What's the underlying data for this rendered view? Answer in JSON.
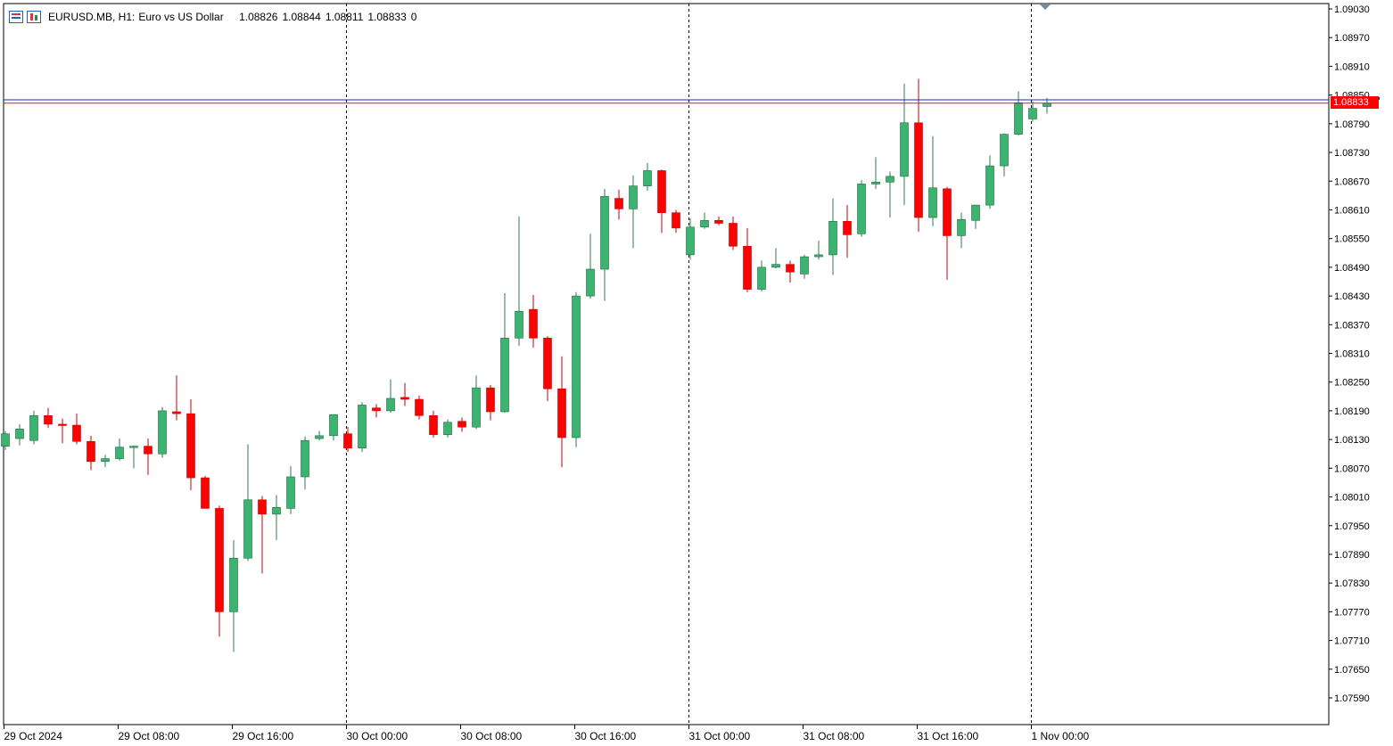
{
  "header": {
    "symbol": "EURUSD.MB, H1:",
    "description": "Euro vs US Dollar",
    "open": "1.08826",
    "high": "1.08844",
    "low": "1.08811",
    "close": "1.08833",
    "volume": "0",
    "icons": [
      "chart-menu-icon",
      "candlestick-icon"
    ]
  },
  "current_price_label": "1.08833",
  "colors": {
    "bull": "#3cb371",
    "bear": "#ff0000",
    "bid_line": "#2222cc",
    "ask_line": "#cc2222",
    "grid": "#000000"
  },
  "chart_data": {
    "type": "candlestick",
    "timeframe": "H1",
    "y_ticks": [
      "1.09030",
      "1.08970",
      "1.08910",
      "1.08850",
      "1.08790",
      "1.08730",
      "1.08670",
      "1.08610",
      "1.08550",
      "1.08490",
      "1.08430",
      "1.08370",
      "1.08310",
      "1.08250",
      "1.08190",
      "1.08130",
      "1.08070",
      "1.08010",
      "1.07950",
      "1.07890",
      "1.07830",
      "1.07770",
      "1.07710",
      "1.07650",
      "1.07590"
    ],
    "x_ticks": [
      "29 Oct 2024",
      "29 Oct 08:00",
      "29 Oct 16:00",
      "30 Oct 00:00",
      "30 Oct 08:00",
      "30 Oct 16:00",
      "31 Oct 00:00",
      "31 Oct 08:00",
      "31 Oct 16:00",
      "1 Nov 00:00"
    ],
    "ylim": [
      1.0754,
      1.0904
    ],
    "bid": 1.08833,
    "ask": 1.0884,
    "candles": [
      [
        1.08116,
        1.08148,
        1.08108,
        1.08142
      ],
      [
        1.08132,
        1.08162,
        1.08118,
        1.08152
      ],
      [
        1.08128,
        1.0819,
        1.0812,
        1.0818
      ],
      [
        1.0818,
        1.08196,
        1.08154,
        1.08162
      ],
      [
        1.08162,
        1.08174,
        1.08122,
        1.0816
      ],
      [
        1.0816,
        1.08184,
        1.0812,
        1.08126
      ],
      [
        1.08126,
        1.08138,
        1.08066,
        1.08084
      ],
      [
        1.08084,
        1.08098,
        1.08072,
        1.0809
      ],
      [
        1.0809,
        1.08132,
        1.08086,
        1.08114
      ],
      [
        1.08114,
        1.08118,
        1.0807,
        1.08116
      ],
      [
        1.08116,
        1.08132,
        1.08056,
        1.081
      ],
      [
        1.081,
        1.08198,
        1.08092,
        1.0819
      ],
      [
        1.08188,
        1.08264,
        1.0817,
        1.08184
      ],
      [
        1.08184,
        1.08214,
        1.08024,
        1.0805
      ],
      [
        1.0805,
        1.08054,
        1.0799,
        1.07986
      ],
      [
        1.07986,
        1.07992,
        1.07718,
        1.0777
      ],
      [
        1.0777,
        1.0792,
        1.07686,
        1.07882
      ],
      [
        1.07882,
        1.0812,
        1.07876,
        1.08004
      ],
      [
        1.08004,
        1.08012,
        1.0785,
        1.07974
      ],
      [
        1.07974,
        1.08014,
        1.0792,
        1.07988
      ],
      [
        1.07986,
        1.08074,
        1.07974,
        1.08052
      ],
      [
        1.08052,
        1.08136,
        1.08026,
        1.08128
      ],
      [
        1.08132,
        1.08148,
        1.08128,
        1.08138
      ],
      [
        1.08138,
        1.08182,
        1.08128,
        1.08182
      ],
      [
        1.08142,
        1.08156,
        1.08104,
        1.08112
      ],
      [
        1.08112,
        1.08208,
        1.08104,
        1.08202
      ],
      [
        1.08196,
        1.08204,
        1.08176,
        1.0819
      ],
      [
        1.0819,
        1.08256,
        1.08186,
        1.08216
      ],
      [
        1.08218,
        1.08248,
        1.082,
        1.08214
      ],
      [
        1.08214,
        1.08222,
        1.08172,
        1.0818
      ],
      [
        1.0818,
        1.0819,
        1.08134,
        1.0814
      ],
      [
        1.0814,
        1.08172,
        1.08134,
        1.08166
      ],
      [
        1.08168,
        1.08176,
        1.08146,
        1.08156
      ],
      [
        1.08156,
        1.08264,
        1.08152,
        1.08238
      ],
      [
        1.08238,
        1.08244,
        1.0817,
        1.08188
      ],
      [
        1.08188,
        1.08436,
        1.08186,
        1.08342
      ],
      [
        1.08342,
        1.08596,
        1.08326,
        1.08398
      ],
      [
        1.08402,
        1.08432,
        1.08322,
        1.08342
      ],
      [
        1.08342,
        1.08346,
        1.0821,
        1.08236
      ],
      [
        1.08236,
        1.08304,
        1.08072,
        1.08134
      ],
      [
        1.08134,
        1.08438,
        1.08114,
        1.0843
      ],
      [
        1.0843,
        1.0856,
        1.08424,
        1.08486
      ],
      [
        1.08486,
        1.08654,
        1.0842,
        1.08638
      ],
      [
        1.08634,
        1.08652,
        1.0859,
        1.08612
      ],
      [
        1.08612,
        1.08682,
        1.0853,
        1.0866
      ],
      [
        1.0866,
        1.08708,
        1.0865,
        1.08692
      ],
      [
        1.08692,
        1.08694,
        1.08562,
        1.08604
      ],
      [
        1.08604,
        1.0861,
        1.08562,
        1.08572
      ],
      [
        1.08516,
        1.08592,
        1.08506,
        1.08574
      ],
      [
        1.08574,
        1.08604,
        1.0857,
        1.08588
      ],
      [
        1.08588,
        1.08596,
        1.08578,
        1.08582
      ],
      [
        1.08582,
        1.08596,
        1.08526,
        1.08534
      ],
      [
        1.08534,
        1.08572,
        1.08438,
        1.08444
      ],
      [
        1.08444,
        1.08504,
        1.0844,
        1.0849
      ],
      [
        1.0849,
        1.0853,
        1.08488,
        1.08496
      ],
      [
        1.08496,
        1.08504,
        1.08458,
        1.0848
      ],
      [
        1.08476,
        1.08516,
        1.08466,
        1.08512
      ],
      [
        1.08512,
        1.08546,
        1.08506,
        1.08516
      ],
      [
        1.08516,
        1.08634,
        1.08474,
        1.08586
      ],
      [
        1.08586,
        1.0862,
        1.0851,
        1.08558
      ],
      [
        1.0856,
        1.08672,
        1.08554,
        1.08664
      ],
      [
        1.08664,
        1.0872,
        1.08654,
        1.08668
      ],
      [
        1.08668,
        1.0869,
        1.08594,
        1.0868
      ],
      [
        1.0868,
        1.08874,
        1.0862,
        1.08792
      ],
      [
        1.08792,
        1.08884,
        1.08564,
        1.08594
      ],
      [
        1.08594,
        1.08764,
        1.08576,
        1.08656
      ],
      [
        1.08654,
        1.08658,
        1.08464,
        1.08556
      ],
      [
        1.08556,
        1.08604,
        1.0853,
        1.0859
      ],
      [
        1.08588,
        1.0862,
        1.0857,
        1.0862
      ],
      [
        1.0862,
        1.08724,
        1.08612,
        1.08702
      ],
      [
        1.08702,
        1.0877,
        1.0868,
        1.08768
      ],
      [
        1.08768,
        1.08858,
        1.08766,
        1.08834
      ],
      [
        1.088,
        1.08836,
        1.08794,
        1.08822
      ],
      [
        1.08826,
        1.08844,
        1.08811,
        1.08833
      ]
    ]
  }
}
